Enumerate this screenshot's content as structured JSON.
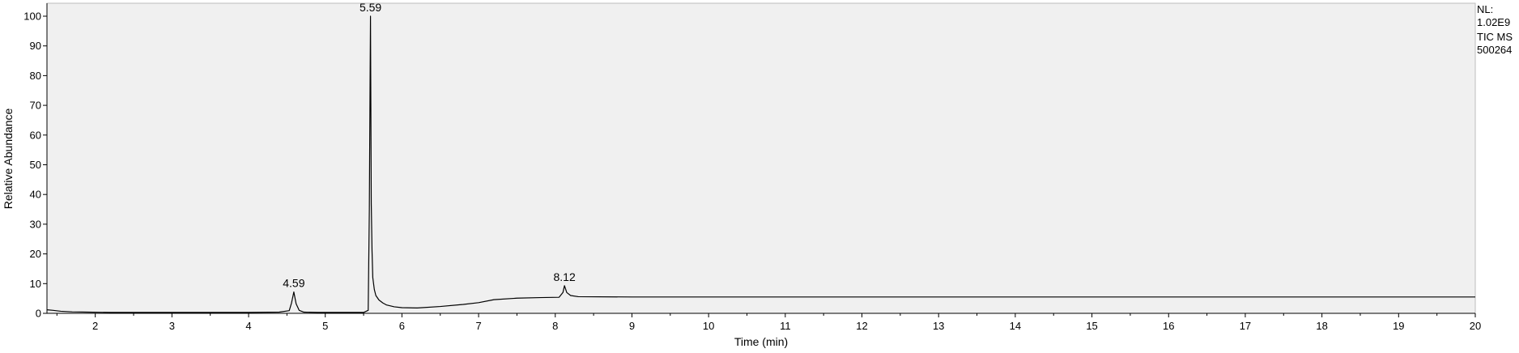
{
  "chart_data": {
    "type": "line",
    "xlabel": "Time (min)",
    "ylabel": "Relative Abundance",
    "xlim": [
      1.37,
      20
    ],
    "ylim": [
      0,
      100
    ],
    "x_ticks": [
      2,
      3,
      4,
      5,
      6,
      7,
      8,
      9,
      10,
      11,
      12,
      13,
      14,
      15,
      16,
      17,
      18,
      19,
      20
    ],
    "y_ticks": [
      0,
      10,
      20,
      30,
      40,
      50,
      60,
      70,
      80,
      90,
      100
    ],
    "grid": false,
    "background_color": "#f0f0f0",
    "line_color": "#000000",
    "side_info": [
      "NL:",
      "1.02E9",
      "TIC  MS",
      "500264"
    ],
    "peak_labels": [
      {
        "x": 4.59,
        "y": 7.2,
        "text": "4.59"
      },
      {
        "x": 5.59,
        "y": 100,
        "text": "5.59"
      },
      {
        "x": 8.12,
        "y": 9.3,
        "text": "8.12"
      }
    ],
    "series": [
      {
        "x": [
          1.37,
          1.45,
          1.55,
          1.7,
          1.9,
          2.2,
          2.6,
          3.0,
          3.5,
          4.0,
          4.4,
          4.53,
          4.56,
          4.59,
          4.62,
          4.66,
          4.72,
          4.9,
          5.2,
          5.5,
          5.56,
          5.575,
          5.585,
          5.59,
          5.6,
          5.61,
          5.62,
          5.64,
          5.66,
          5.7,
          5.75,
          5.8,
          5.9,
          6.0,
          6.2,
          6.5,
          6.8,
          7.0,
          7.2,
          7.5,
          7.8,
          8.05,
          8.1,
          8.12,
          8.15,
          8.2,
          8.3,
          9.0,
          10.0,
          12.0,
          14.0,
          16.0,
          18.0,
          20.0
        ],
        "y": [
          1.2,
          1.0,
          0.7,
          0.5,
          0.4,
          0.3,
          0.3,
          0.3,
          0.3,
          0.3,
          0.4,
          0.9,
          3.5,
          7.2,
          3.2,
          1.0,
          0.4,
          0.3,
          0.3,
          0.3,
          1.0,
          35,
          80,
          100,
          37,
          21,
          12,
          8,
          6,
          4.5,
          3.5,
          2.8,
          2.2,
          1.9,
          1.8,
          2.3,
          3.0,
          3.6,
          4.6,
          5.1,
          5.3,
          5.4,
          7.0,
          9.3,
          7.0,
          6.0,
          5.6,
          5.5,
          5.5,
          5.5,
          5.5,
          5.5,
          5.5,
          5.5
        ]
      }
    ]
  }
}
